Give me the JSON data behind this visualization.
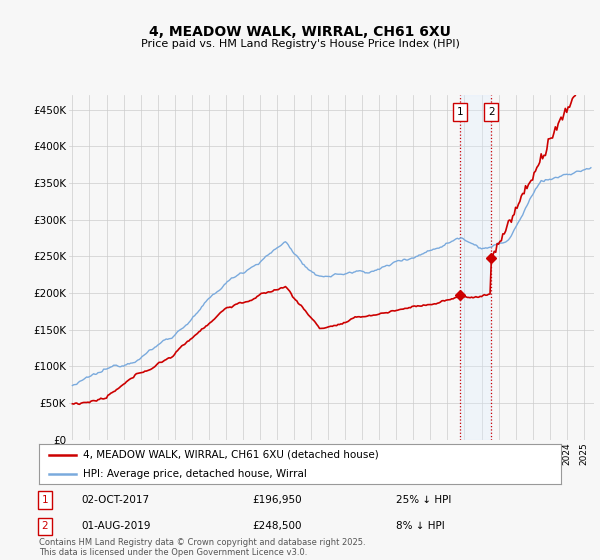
{
  "title": "4, MEADOW WALK, WIRRAL, CH61 6XU",
  "subtitle": "Price paid vs. HM Land Registry's House Price Index (HPI)",
  "ylim": [
    0,
    470000
  ],
  "yticks": [
    0,
    50000,
    100000,
    150000,
    200000,
    250000,
    300000,
    350000,
    400000,
    450000
  ],
  "ytick_labels": [
    "£0",
    "£50K",
    "£100K",
    "£150K",
    "£200K",
    "£250K",
    "£300K",
    "£350K",
    "£400K",
    "£450K"
  ],
  "hpi_color": "#7aaadd",
  "price_color": "#cc0000",
  "highlight_color": "#ddeeff",
  "annotation_color": "#cc0000",
  "background_color": "#f7f7f7",
  "grid_color": "#cccccc",
  "sale1_date": "02-OCT-2017",
  "sale1_price": 196950,
  "sale1_year": 2017.75,
  "sale1_hpi_pct": "25% ↓ HPI",
  "sale2_date": "01-AUG-2019",
  "sale2_price": 248500,
  "sale2_year": 2019.583,
  "sale2_hpi_pct": "8% ↓ HPI",
  "legend_label1": "4, MEADOW WALK, WIRRAL, CH61 6XU (detached house)",
  "legend_label2": "HPI: Average price, detached house, Wirral",
  "footer": "Contains HM Land Registry data © Crown copyright and database right 2025.\nThis data is licensed under the Open Government Licence v3.0."
}
